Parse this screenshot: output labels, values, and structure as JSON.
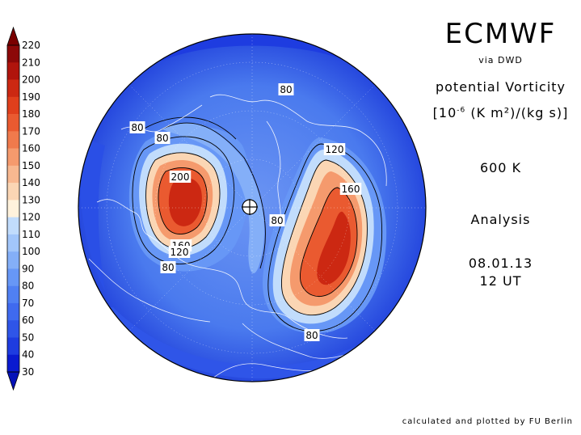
{
  "header": {
    "title": "ECMWF",
    "source": "via DWD",
    "variable": "potential Vorticity",
    "unit_prefix": "[10",
    "unit_exp": "-6",
    "unit_rest": " (K m²)/(kg s)]",
    "level": "600 K",
    "product": "Analysis",
    "date": "08.01.13",
    "time": "12 UT"
  },
  "footer": {
    "credit": "calculated and plotted by FU Berlin"
  },
  "colorbar": {
    "levels": [
      30,
      40,
      50,
      60,
      70,
      80,
      90,
      100,
      110,
      120,
      130,
      140,
      150,
      160,
      170,
      180,
      190,
      200,
      210,
      220
    ],
    "colors": [
      "#0a1ad0",
      "#1e3ce0",
      "#2f55e8",
      "#3f6aef",
      "#5080f3",
      "#6797f6",
      "#84afF8",
      "#a2c6fa",
      "#c1dcfc",
      "#fff2dc",
      "#fbd6b4",
      "#f8b890",
      "#f59a6d",
      "#f07a4c",
      "#ea5a30",
      "#e03f1c",
      "#cc2812",
      "#b0140c",
      "#8c0808"
    ],
    "under_color": "#0512b8",
    "over_color": "#7a0000"
  },
  "map": {
    "projection": "north polar stereographic",
    "ocean_color": "#3f6aef",
    "contour_labels": [
      "80",
      "80",
      "80",
      "120",
      "160",
      "80",
      "200",
      "160",
      "120",
      "80",
      "80"
    ]
  }
}
